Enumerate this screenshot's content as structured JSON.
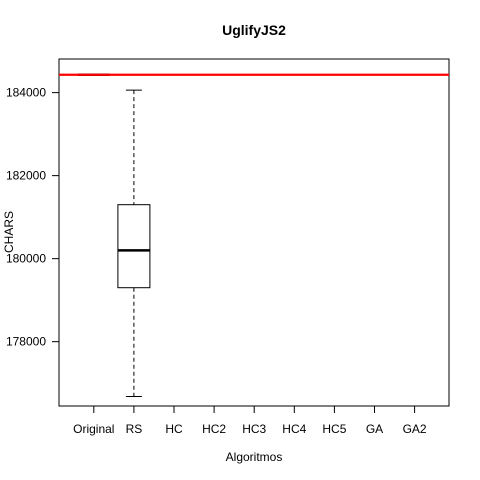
{
  "chart_data": {
    "type": "boxplot",
    "title": "UglifyJS2",
    "xlabel": "Algoritmos",
    "ylabel": "CHARS",
    "categories": [
      "Original",
      "RS",
      "HC",
      "HC2",
      "HC3",
      "HC4",
      "HC5",
      "GA",
      "GA2"
    ],
    "yticks": [
      178000,
      180000,
      182000,
      184000
    ],
    "ylim": [
      176450,
      184810
    ],
    "reference_line": {
      "value": 184430,
      "color": "#ff0000"
    },
    "boxes": [
      {
        "category": "Original",
        "min": 184430,
        "q1": 184430,
        "median": 184430,
        "q3": 184430,
        "max": 184430
      },
      {
        "category": "RS",
        "min": 176680,
        "q1": 179300,
        "median": 180200,
        "q3": 181300,
        "max": 184060
      }
    ],
    "grid": false,
    "legend": "none"
  }
}
